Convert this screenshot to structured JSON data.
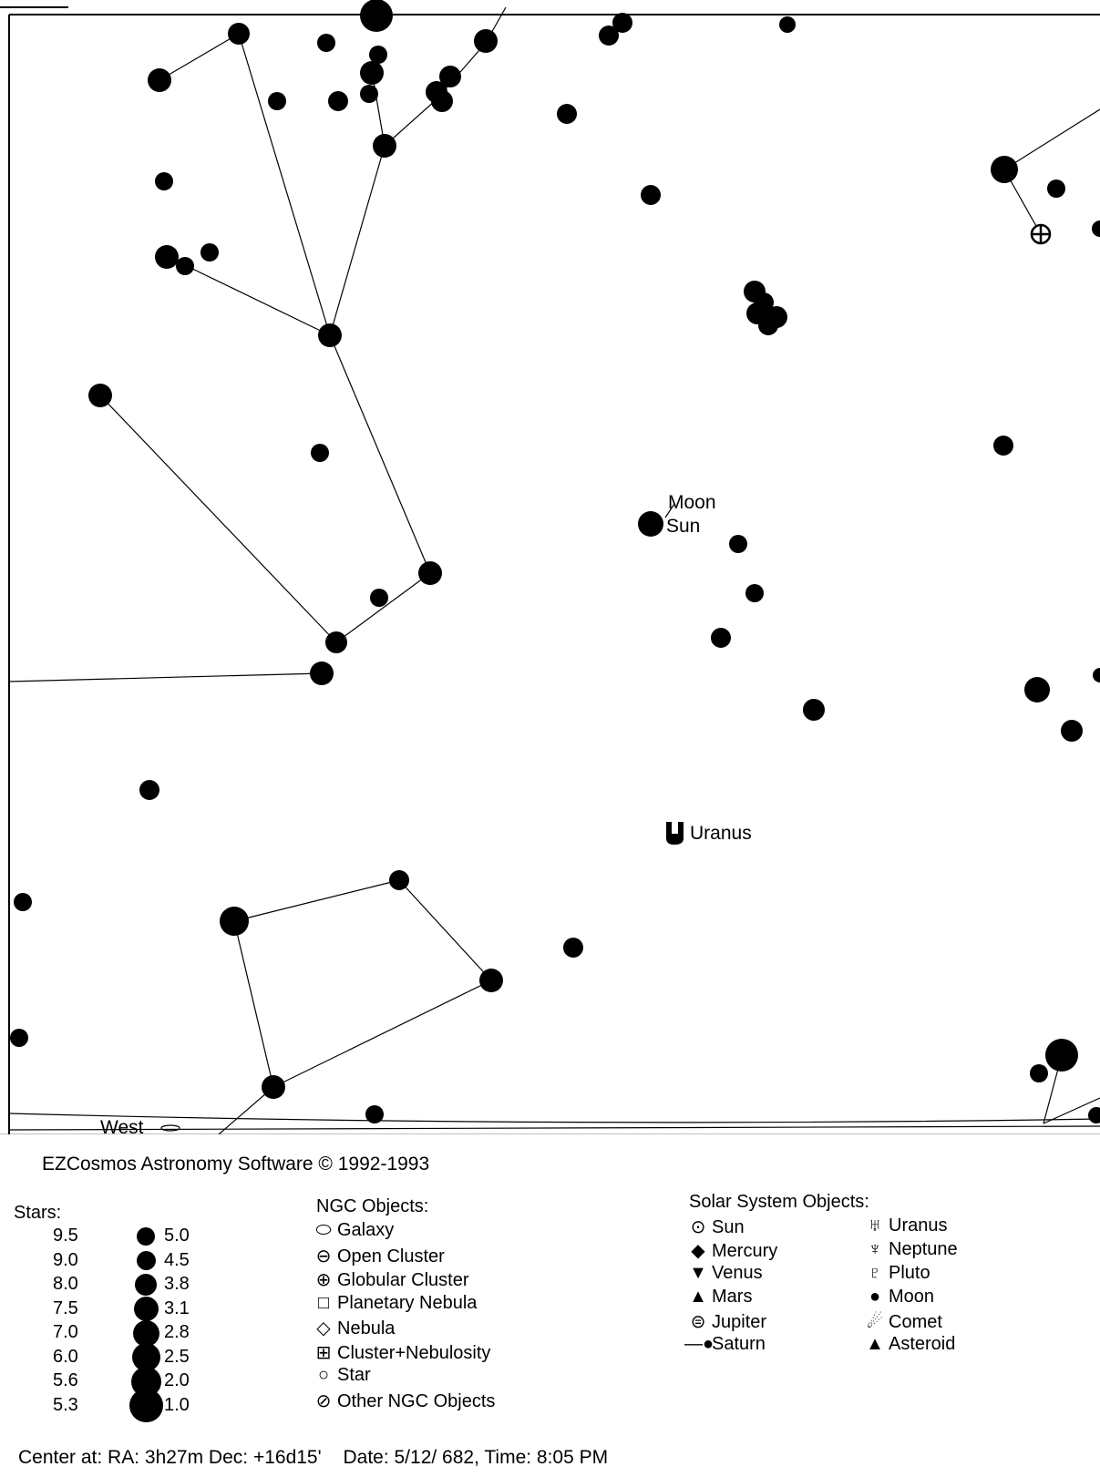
{
  "map": {
    "labels": {
      "moon": "Moon",
      "sun": "Sun",
      "uranus": "Uranus",
      "west": "West"
    }
  },
  "legend": {
    "credit": "EZCosmos Astronomy Software © 1992-1993",
    "stars": {
      "title": "Stars:",
      "left_values": [
        "9.5",
        "9.0",
        "8.0",
        "7.5",
        "7.0",
        "6.0",
        "5.6",
        "5.3"
      ],
      "right_values": [
        "5.0",
        "4.5",
        "3.8",
        "3.1",
        "2.8",
        "2.5",
        "2.0",
        "1.0"
      ]
    },
    "ngc": {
      "title": "NGC Objects:",
      "items": [
        {
          "symbol": "⬭",
          "label": "Galaxy"
        },
        {
          "symbol": "⊖",
          "label": "Open Cluster"
        },
        {
          "symbol": "⊕",
          "label": "Globular Cluster"
        },
        {
          "symbol": "□",
          "label": "Planetary Nebula"
        },
        {
          "symbol": "◇",
          "label": "Nebula"
        },
        {
          "symbol": "⊞",
          "label": "Cluster+Nebulosity"
        },
        {
          "symbol": "○",
          "label": "Star"
        },
        {
          "symbol": "⊘",
          "label": "Other NGC Objects"
        }
      ]
    },
    "solar": {
      "title": "Solar System Objects:",
      "left": [
        {
          "symbol": "⊙",
          "label": "Sun"
        },
        {
          "symbol": "◆",
          "label": "Mercury"
        },
        {
          "symbol": "▼",
          "label": "Venus"
        },
        {
          "symbol": "▲",
          "label": "Mars"
        },
        {
          "symbol": "⊜",
          "label": "Jupiter"
        },
        {
          "symbol": "—●",
          "label": "Saturn"
        }
      ],
      "right": [
        {
          "symbol": "♅",
          "label": "Uranus"
        },
        {
          "symbol": "♆",
          "label": "Neptune"
        },
        {
          "symbol": "♇",
          "label": "Pluto"
        },
        {
          "symbol": "●",
          "label": "Moon"
        },
        {
          "symbol": "☄",
          "label": "Comet"
        },
        {
          "symbol": "▲",
          "label": "Asteroid"
        }
      ]
    }
  },
  "status": {
    "center": "Center at: RA:  3h27m Dec: +16d15'",
    "date": "Date: 5/12/ 682, Time: 8:05 PM"
  }
}
